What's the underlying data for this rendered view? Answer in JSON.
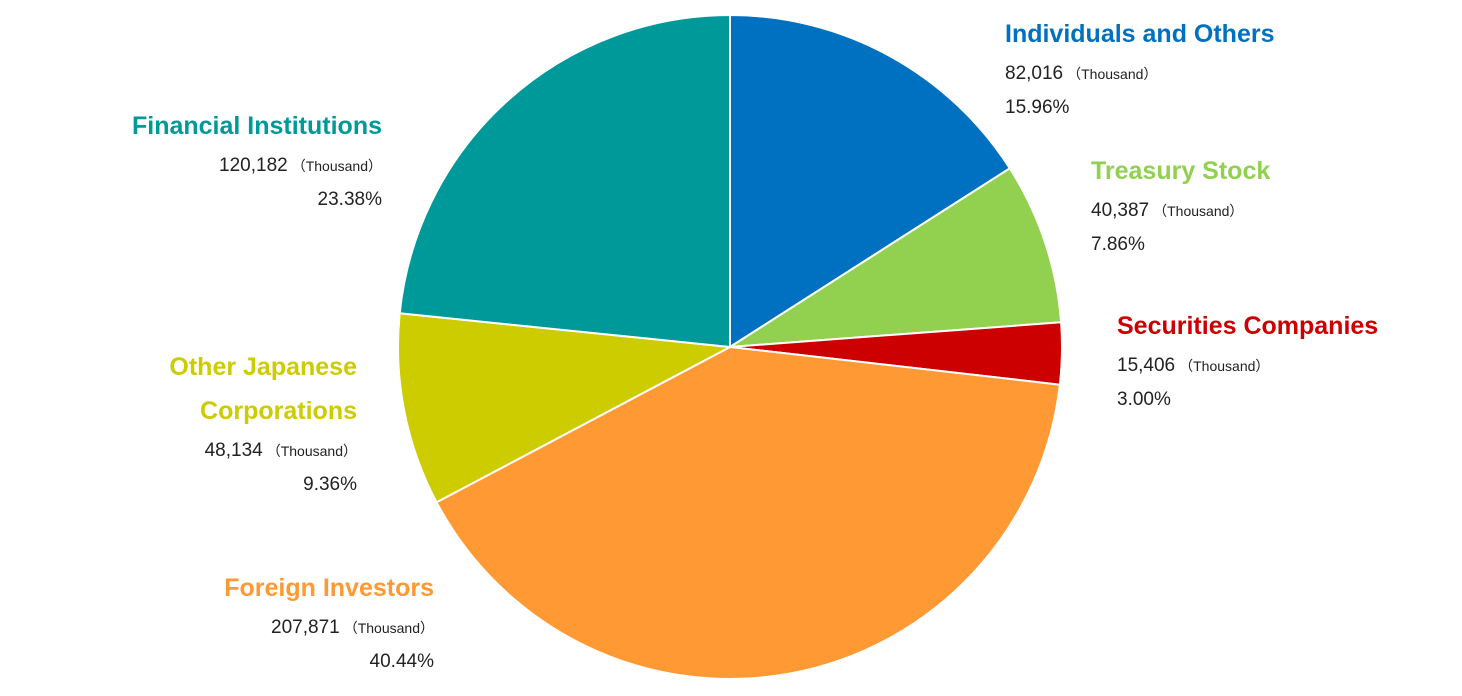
{
  "chart_data": {
    "type": "pie",
    "unit_label": "（Thousand）",
    "slices": [
      {
        "name": "Individuals and Others",
        "value": 82016,
        "value_text": "82,016",
        "percent": 15.96,
        "percent_text": "15.96%",
        "color": "#0070C0"
      },
      {
        "name": "Treasury Stock",
        "value": 40387,
        "value_text": "40,387",
        "percent": 7.86,
        "percent_text": "7.86%",
        "color": "#92D050"
      },
      {
        "name": "Securities Companies",
        "value": 15406,
        "value_text": "15,406",
        "percent": 3.0,
        "percent_text": "3.00%",
        "color": "#CC0000"
      },
      {
        "name": "Foreign Investors",
        "value": 207871,
        "value_text": "207,871",
        "percent": 40.44,
        "percent_text": "40.44%",
        "color": "#FF9933"
      },
      {
        "name_lines": [
          "Other Japanese",
          "Corporations"
        ],
        "name": "Other Japanese Corporations",
        "value": 48134,
        "value_text": "48,134",
        "percent": 9.36,
        "percent_text": "9.36%",
        "color": "#CCCC00"
      },
      {
        "name": "Financial Institutions",
        "value": 120182,
        "value_text": "120,182",
        "percent": 23.38,
        "percent_text": "23.38%",
        "color": "#009999"
      }
    ]
  }
}
